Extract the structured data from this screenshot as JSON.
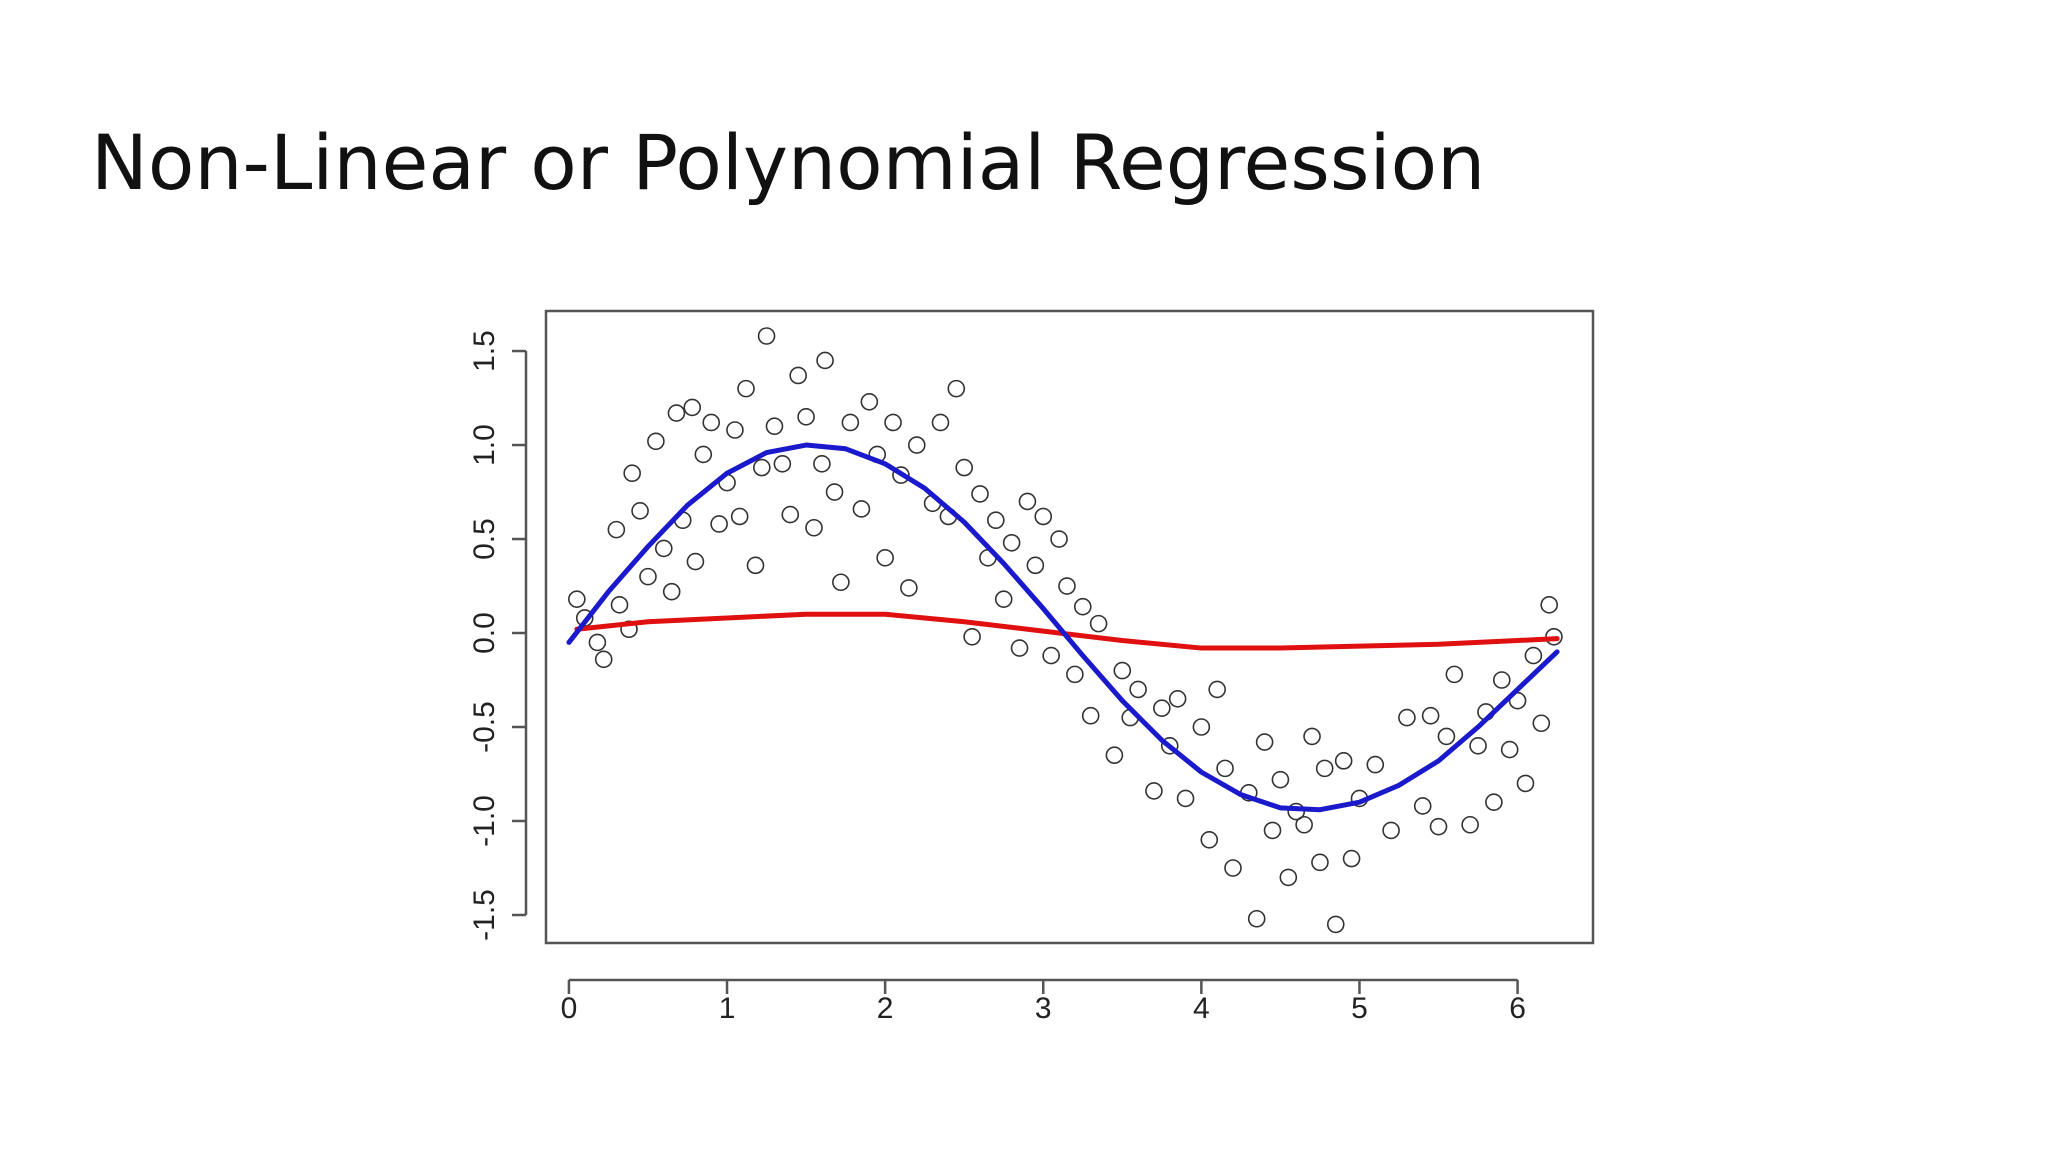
{
  "chart_data": {
    "type": "scatter",
    "title": "Non-Linear or Polynomial Regression",
    "xlim": [
      -0.145,
      6.477
    ],
    "ylim": [
      -1.649,
      1.713
    ],
    "xticks": [
      0,
      1,
      2,
      3,
      4,
      5,
      6
    ],
    "yticks": [
      {
        "value": -1.5,
        "label": "-1.5"
      },
      {
        "value": -1.0,
        "label": "-1.0"
      },
      {
        "value": -0.5,
        "label": "-0.5"
      },
      {
        "value": 0.0,
        "label": "0.0"
      },
      {
        "value": 0.5,
        "label": "0.5"
      },
      {
        "value": 1.0,
        "label": "1.0"
      },
      {
        "value": 1.5,
        "label": "1.5"
      }
    ],
    "series": [
      {
        "type": "scatter",
        "color": "#333333",
        "x": [
          0.05,
          0.1,
          0.18,
          0.22,
          0.3,
          0.32,
          0.38,
          0.4,
          0.45,
          0.5,
          0.55,
          0.6,
          0.65,
          0.68,
          0.72,
          0.78,
          0.8,
          0.85,
          0.9,
          0.95,
          1.0,
          1.05,
          1.08,
          1.12,
          1.18,
          1.22,
          1.25,
          1.3,
          1.35,
          1.4,
          1.45,
          1.5,
          1.55,
          1.6,
          1.62,
          1.68,
          1.72,
          1.78,
          1.85,
          1.9,
          1.95,
          2.0,
          2.05,
          2.1,
          2.15,
          2.2,
          2.3,
          2.35,
          2.4,
          2.45,
          2.5,
          2.55,
          2.6,
          2.65,
          2.7,
          2.75,
          2.8,
          2.85,
          2.9,
          2.95,
          3.0,
          3.05,
          3.1,
          3.15,
          3.2,
          3.25,
          3.3,
          3.35,
          3.45,
          3.5,
          3.55,
          3.6,
          3.7,
          3.75,
          3.8,
          3.85,
          3.9,
          4.0,
          4.05,
          4.1,
          4.15,
          4.2,
          4.3,
          4.35,
          4.4,
          4.45,
          4.5,
          4.55,
          4.6,
          4.65,
          4.7,
          4.75,
          4.78,
          4.85,
          4.9,
          4.95,
          5.0,
          5.1,
          5.2,
          5.3,
          5.4,
          5.45,
          5.5,
          5.55,
          5.6,
          5.7,
          5.75,
          5.8,
          5.85,
          5.9,
          5.95,
          6.0,
          6.05,
          6.1,
          6.15,
          6.2,
          6.23
        ],
        "values": [
          0.18,
          0.08,
          -0.05,
          -0.14,
          0.55,
          0.15,
          0.02,
          0.85,
          0.65,
          0.3,
          1.02,
          0.45,
          0.22,
          1.17,
          0.6,
          1.2,
          0.38,
          0.95,
          1.12,
          0.58,
          0.8,
          1.08,
          0.62,
          1.3,
          0.36,
          0.88,
          1.58,
          1.1,
          0.9,
          0.63,
          1.37,
          1.15,
          0.56,
          0.9,
          1.45,
          0.75,
          0.27,
          1.12,
          0.66,
          1.23,
          0.95,
          0.4,
          1.12,
          0.84,
          0.24,
          1.0,
          0.69,
          1.12,
          0.62,
          1.3,
          0.88,
          -0.02,
          0.74,
          0.4,
          0.6,
          0.18,
          0.48,
          -0.08,
          0.7,
          0.36,
          0.62,
          -0.12,
          0.5,
          0.25,
          -0.22,
          0.14,
          -0.44,
          0.05,
          -0.65,
          -0.2,
          -0.45,
          -0.3,
          -0.84,
          -0.4,
          -0.6,
          -0.35,
          -0.88,
          -0.5,
          -1.1,
          -0.3,
          -0.72,
          -1.25,
          -0.85,
          -1.52,
          -0.58,
          -1.05,
          -0.78,
          -1.3,
          -0.95,
          -1.02,
          -0.55,
          -1.22,
          -0.72,
          -1.55,
          -0.68,
          -1.2,
          -0.88,
          -0.7,
          -1.05,
          -0.45,
          -0.92,
          -0.44,
          -1.03,
          -0.55,
          -0.22,
          -1.02,
          -0.6,
          -0.42,
          -0.9,
          -0.25,
          -0.62,
          -0.36,
          -0.8,
          -0.12,
          -0.48,
          0.15,
          -0.02
        ]
      },
      {
        "type": "line",
        "color": "#e01010",
        "x": [
          0.05,
          0.5,
          1,
          1.5,
          2,
          2.5,
          3,
          3.5,
          4,
          4.5,
          5,
          5.5,
          6,
          6.25
        ],
        "values": [
          0.02,
          0.06,
          0.08,
          0.1,
          0.1,
          0.06,
          0.01,
          -0.04,
          -0.08,
          -0.08,
          -0.07,
          -0.06,
          -0.04,
          -0.03
        ]
      },
      {
        "type": "line",
        "color": "#1a1acc",
        "x": [
          0,
          0.25,
          0.5,
          0.75,
          1,
          1.25,
          1.5,
          1.75,
          2,
          2.25,
          2.5,
          2.75,
          3,
          3.25,
          3.5,
          3.75,
          4,
          4.25,
          4.5,
          4.75,
          5,
          5.25,
          5.5,
          5.75,
          6,
          6.25
        ],
        "values": [
          -0.05,
          0.22,
          0.46,
          0.68,
          0.85,
          0.96,
          1.0,
          0.98,
          0.9,
          0.77,
          0.59,
          0.37,
          0.13,
          -0.12,
          -0.36,
          -0.57,
          -0.74,
          -0.86,
          -0.93,
          -0.94,
          -0.9,
          -0.81,
          -0.68,
          -0.5,
          -0.3,
          -0.1
        ]
      }
    ]
  }
}
